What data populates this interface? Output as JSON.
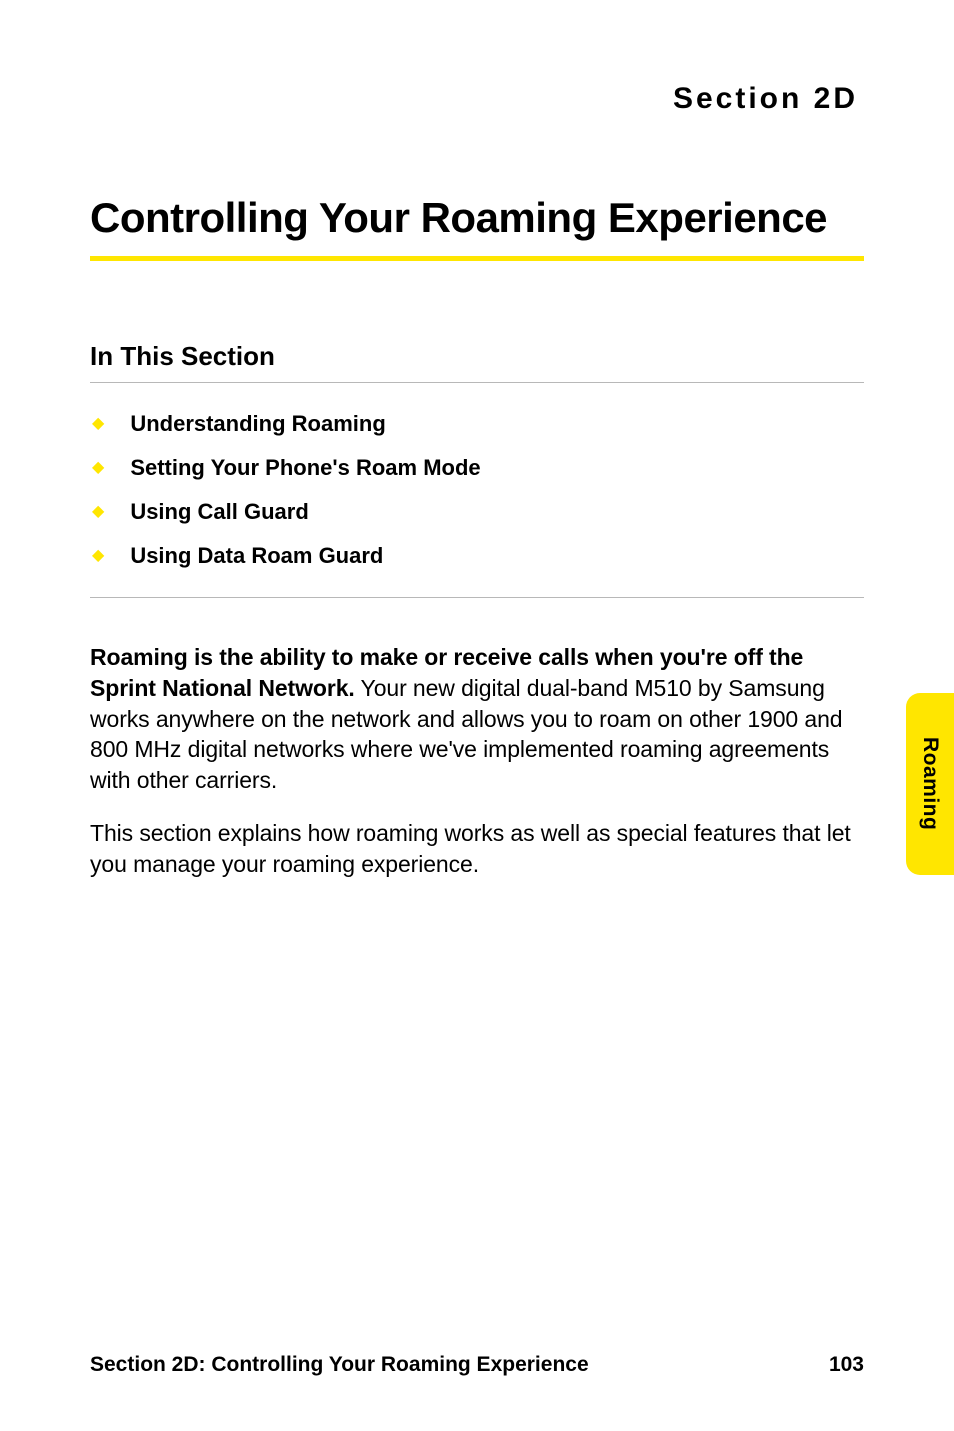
{
  "section_label": "Section 2D",
  "main_title": "Controlling Your Roaming Experience",
  "subheading": "In This Section",
  "toc_items": [
    "Understanding Roaming",
    "Setting Your Phone's Roam Mode",
    "Using Call Guard",
    "Using Data Roam Guard"
  ],
  "body": {
    "p1_bold": "Roaming is the ability to make or receive calls when you're off the Sprint National Network.",
    "p1_rest": " Your new digital dual-band M510 by Samsung works anywhere on the network and allows you to roam on other 1900 and 800 MHz digital networks where we've implemented roaming agreements with other carriers.",
    "p2": "This section explains how roaming works as well as special features that let you manage your roaming experience."
  },
  "side_tab": "Roaming",
  "footer": {
    "title": "Section 2D: Controlling Your Roaming Experience",
    "page": "103"
  },
  "colors": {
    "accent": "#ffe600",
    "text": "#000000",
    "rule": "#b8b8b8",
    "background": "#ffffff"
  }
}
